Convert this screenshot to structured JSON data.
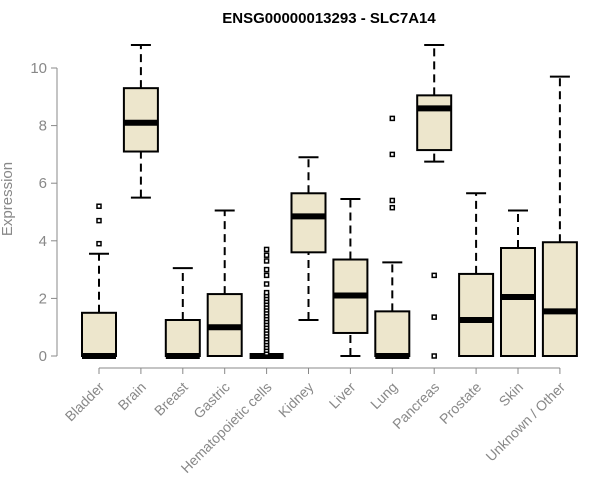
{
  "chart_data": {
    "type": "boxplot",
    "title": "ENSG00000013293 - SLC7A14",
    "xlabel": "",
    "ylabel": "Expression",
    "ylim": [
      0,
      10.8
    ],
    "yticks": [
      0,
      2,
      4,
      6,
      8,
      10
    ],
    "box_fill": "#ede6cc",
    "box_stroke": "#000000",
    "axis_color": "#888888",
    "categories": [
      "Bladder",
      "Brain",
      "Breast",
      "Gastric",
      "Hematopoietic cells",
      "Kidney",
      "Liver",
      "Lung",
      "Pancreas",
      "Prostate",
      "Skin",
      "Unknown / Other"
    ],
    "boxes": [
      {
        "q1": 0,
        "median": 0,
        "q3": 1.5,
        "whisker_low": 0,
        "whisker_high": 3.55,
        "outliers": [
          3.9,
          4.7,
          5.2
        ]
      },
      {
        "q1": 7.1,
        "median": 8.1,
        "q3": 9.3,
        "whisker_low": 5.5,
        "whisker_high": 10.8,
        "outliers": []
      },
      {
        "q1": 0,
        "median": 0,
        "q3": 1.25,
        "whisker_low": 0,
        "whisker_high": 3.05,
        "outliers": []
      },
      {
        "q1": 0,
        "median": 1.0,
        "q3": 2.15,
        "whisker_low": 0,
        "whisker_high": 5.05,
        "outliers": []
      },
      {
        "q1": 0,
        "median": 0,
        "q3": 0,
        "whisker_low": 0,
        "whisker_high": 0,
        "outliers": [
          0.1,
          0.2,
          0.3,
          0.4,
          0.5,
          0.6,
          0.7,
          0.8,
          0.9,
          1.0,
          1.1,
          1.2,
          1.3,
          1.4,
          1.5,
          1.6,
          1.7,
          1.8,
          1.9,
          2.0,
          2.1,
          2.2,
          2.5,
          2.8,
          3.0,
          3.3,
          3.5,
          3.7
        ]
      },
      {
        "q1": 3.6,
        "median": 4.85,
        "q3": 5.65,
        "whisker_low": 1.25,
        "whisker_high": 6.9,
        "outliers": []
      },
      {
        "q1": 0.8,
        "median": 2.1,
        "q3": 3.35,
        "whisker_low": 0,
        "whisker_high": 5.45,
        "outliers": []
      },
      {
        "q1": 0,
        "median": 0,
        "q3": 1.55,
        "whisker_low": 0,
        "whisker_high": 3.25,
        "outliers": [
          5.15,
          5.4,
          7.0,
          8.25
        ]
      },
      {
        "q1": 7.15,
        "median": 8.6,
        "q3": 9.05,
        "whisker_low": 6.75,
        "whisker_high": 10.8,
        "outliers": [
          0,
          1.35,
          2.8
        ]
      },
      {
        "q1": 0,
        "median": 1.25,
        "q3": 2.85,
        "whisker_low": 0,
        "whisker_high": 5.65,
        "outliers": []
      },
      {
        "q1": 0,
        "median": 2.05,
        "q3": 3.75,
        "whisker_low": 0,
        "whisker_high": 5.05,
        "outliers": []
      },
      {
        "q1": 0,
        "median": 1.55,
        "q3": 3.95,
        "whisker_low": 0,
        "whisker_high": 9.7,
        "outliers": []
      }
    ]
  }
}
